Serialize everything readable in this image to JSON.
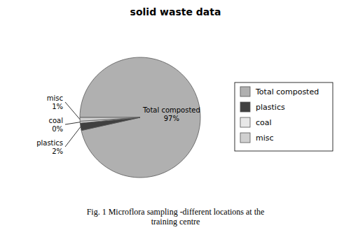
{
  "chart_data": {
    "type": "pie",
    "title": "solid waste data",
    "categories": [
      "Total composted",
      "plastics",
      "coal",
      "misc"
    ],
    "values": [
      97,
      2,
      0.5,
      1
    ],
    "value_labels": [
      "97%",
      "2%",
      "0%",
      "1%"
    ],
    "colors": [
      "#b0b0b0",
      "#404040",
      "#e8e8e8",
      "#d0d0d0"
    ],
    "data_labels": true,
    "legend": "right",
    "caption": "Fig. 1 Microflora sampling -different locations at the\ntraining centre"
  }
}
